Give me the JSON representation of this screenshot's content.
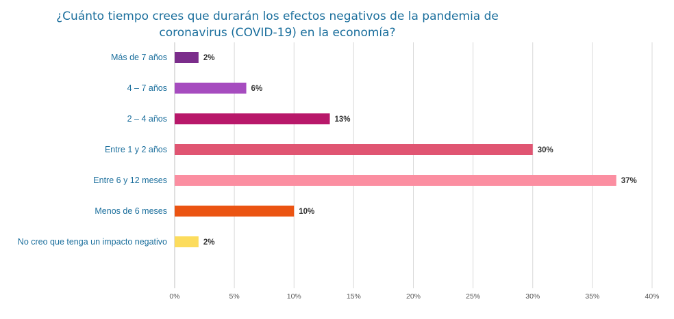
{
  "chart_data": {
    "type": "bar",
    "orientation": "horizontal",
    "title": "¿Cuánto tiempo crees que durarán los efectos negativos de la pandemia de coronavirus (COVID-19) en la economía?",
    "categories": [
      "Más de 7 años",
      "4 – 7 años",
      "2 – 4 años",
      "Entre 1 y 2 años",
      "Entre 6 y 12 meses",
      "Menos de 6 meses",
      "No creo que tenga un impacto negativo"
    ],
    "values": [
      2,
      6,
      13,
      30,
      37,
      10,
      2
    ],
    "value_labels": [
      "2%",
      "6%",
      "13%",
      "30%",
      "37%",
      "10%",
      "2%"
    ],
    "colors": [
      "#7b2d8b",
      "#a64cbf",
      "#b8186a",
      "#e05572",
      "#fb8ea1",
      "#eb5412",
      "#fcdc5d"
    ],
    "xlim": [
      0,
      40
    ],
    "xticks": [
      0,
      5,
      10,
      15,
      20,
      25,
      30,
      35,
      40
    ],
    "xtick_labels": [
      "0%",
      "5%",
      "10%",
      "15%",
      "20%",
      "25%",
      "30%",
      "35%",
      "40%"
    ],
    "grid": "vertical",
    "legend": "none"
  }
}
